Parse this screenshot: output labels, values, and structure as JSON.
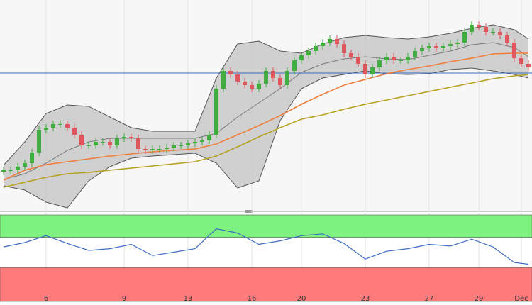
{
  "chart_data": {
    "type": "candlestick",
    "categories": [
      null,
      null,
      null,
      null,
      null,
      null,
      "6",
      null,
      null,
      null,
      null,
      null,
      null,
      null,
      null,
      null,
      null,
      "9",
      null,
      null,
      null,
      null,
      null,
      null,
      null,
      null,
      "13",
      null,
      null,
      null,
      null,
      null,
      null,
      null,
      null,
      "16",
      null,
      null,
      null,
      null,
      null,
      null,
      "20",
      null,
      null,
      null,
      null,
      null,
      null,
      null,
      null,
      "23",
      null,
      null,
      null,
      null,
      null,
      null,
      null,
      null,
      "27",
      null,
      null,
      null,
      null,
      null,
      null,
      "29",
      null,
      null,
      null,
      null,
      null,
      "Dec",
      null
    ],
    "open": [
      58,
      60,
      60,
      65,
      70,
      85,
      117,
      120,
      125,
      125,
      120,
      110,
      95,
      95,
      100,
      100,
      95,
      105,
      107,
      105,
      90,
      88,
      90,
      90,
      92,
      95,
      95,
      98,
      100,
      102,
      110,
      175,
      200,
      195,
      185,
      180,
      175,
      182,
      200,
      190,
      180,
      200,
      215,
      222,
      228,
      235,
      240,
      245,
      238,
      225,
      220,
      210,
      195,
      205,
      215,
      220,
      215,
      215,
      220,
      228,
      232,
      235,
      232,
      235,
      238,
      240,
      255,
      265,
      262,
      255,
      255,
      250,
      240,
      218,
      210
    ],
    "high": [
      65,
      65,
      70,
      75,
      90,
      122,
      125,
      130,
      130,
      130,
      125,
      115,
      100,
      105,
      105,
      105,
      110,
      112,
      112,
      110,
      95,
      95,
      95,
      97,
      100,
      100,
      103,
      105,
      107,
      115,
      180,
      205,
      205,
      200,
      190,
      185,
      187,
      205,
      205,
      195,
      205,
      220,
      227,
      233,
      240,
      245,
      250,
      250,
      243,
      230,
      225,
      215,
      210,
      220,
      225,
      225,
      220,
      225,
      233,
      237,
      240,
      240,
      240,
      243,
      245,
      260,
      270,
      270,
      267,
      260,
      260,
      255,
      245,
      223,
      215
    ],
    "low": [
      53,
      55,
      55,
      60,
      65,
      80,
      112,
      115,
      120,
      115,
      105,
      90,
      90,
      90,
      95,
      90,
      90,
      100,
      100,
      85,
      83,
      83,
      85,
      85,
      87,
      90,
      90,
      93,
      95,
      97,
      105,
      170,
      190,
      180,
      175,
      170,
      170,
      177,
      185,
      175,
      175,
      195,
      210,
      217,
      223,
      230,
      235,
      233,
      220,
      215,
      205,
      190,
      190,
      200,
      210,
      210,
      210,
      210,
      215,
      223,
      227,
      227,
      227,
      230,
      233,
      235,
      250,
      257,
      250,
      250,
      245,
      235,
      213,
      205,
      200
    ],
    "close": [
      60,
      60,
      65,
      70,
      85,
      117,
      120,
      125,
      125,
      120,
      110,
      95,
      95,
      100,
      100,
      95,
      105,
      107,
      105,
      90,
      88,
      90,
      90,
      92,
      95,
      95,
      98,
      100,
      102,
      110,
      175,
      200,
      195,
      185,
      180,
      175,
      182,
      200,
      190,
      180,
      200,
      215,
      222,
      228,
      235,
      240,
      245,
      238,
      225,
      220,
      210,
      195,
      205,
      215,
      220,
      215,
      215,
      220,
      228,
      232,
      235,
      232,
      235,
      238,
      240,
      255,
      265,
      262,
      255,
      255,
      250,
      240,
      218,
      210,
      205
    ],
    "up_color": "#3fae3f",
    "down_color": "#e0565f",
    "ylim": [
      0,
      300
    ],
    "hline": {
      "value": 197,
      "color": "#3d6cc4"
    },
    "bands": {
      "x": [
        0,
        3,
        6,
        9,
        12,
        15,
        18,
        21,
        24,
        27,
        30,
        33,
        36,
        39,
        42,
        45,
        48,
        51,
        54,
        57,
        60,
        63,
        66,
        69,
        72,
        74
      ],
      "upper": [
        67,
        100,
        140,
        152,
        150,
        135,
        120,
        115,
        115,
        115,
        190,
        238,
        242,
        228,
        225,
        238,
        247,
        250,
        247,
        245,
        248,
        253,
        260,
        265,
        258,
        245
      ],
      "middle": [
        47,
        55,
        70,
        88,
        100,
        105,
        105,
        105,
        105,
        105,
        112,
        135,
        155,
        175,
        198,
        210,
        217,
        220,
        217,
        216,
        222,
        228,
        237,
        240,
        233,
        220
      ],
      "lower": [
        38,
        32,
        15,
        7,
        45,
        65,
        77,
        80,
        82,
        84,
        70,
        35,
        45,
        130,
        175,
        190,
        195,
        200,
        196,
        195,
        196,
        202,
        204,
        200,
        195,
        190
      ],
      "color": "#555555",
      "middle_color": "#7a7a7a",
      "fill": "#c9c9c9"
    },
    "overlays": [
      {
        "x": [
          0,
          3,
          6,
          9,
          12,
          15,
          18,
          21,
          24,
          27,
          30,
          33,
          36,
          39,
          42,
          45,
          48,
          51,
          54,
          57,
          60,
          63,
          66,
          69,
          72,
          74
        ],
        "values": [
          46,
          60,
          68,
          72,
          76,
          80,
          83,
          86,
          88,
          90,
          97,
          110,
          123,
          137,
          153,
          167,
          180,
          188,
          196,
          202,
          207,
          213,
          218,
          224,
          225,
          225
        ],
        "color": "#f07d3a"
      },
      {
        "x": [
          0,
          3,
          6,
          9,
          12,
          15,
          18,
          21,
          24,
          27,
          30,
          33,
          36,
          39,
          42,
          45,
          48,
          51,
          54,
          57,
          60,
          63,
          66,
          69,
          72,
          74
        ],
        "values": [
          36,
          43,
          50,
          55,
          57,
          60,
          63,
          66,
          69,
          72,
          80,
          93,
          107,
          120,
          132,
          138,
          146,
          153,
          159,
          165,
          171,
          177,
          183,
          189,
          193,
          195
        ],
        "color": "#b5a020"
      }
    ],
    "rsi": {
      "x": [
        0,
        3,
        6,
        9,
        12,
        15,
        18,
        21,
        24,
        27,
        30,
        33,
        36,
        39,
        42,
        45,
        48,
        51,
        54,
        57,
        60,
        63,
        66,
        69,
        72,
        74
      ],
      "values": [
        63,
        68,
        76,
        67,
        59,
        61,
        66,
        53,
        57,
        61,
        84,
        79,
        66,
        70,
        76,
        78,
        67,
        49,
        58,
        61,
        66,
        64,
        72,
        63,
        45,
        43
      ],
      "ylim": [
        0,
        100
      ],
      "overbought": 74,
      "oversold": 39,
      "color": "#3d6cc4",
      "overbought_color": "#7ef27e",
      "oversold_color": "#ff7b7b"
    },
    "grid": true
  }
}
